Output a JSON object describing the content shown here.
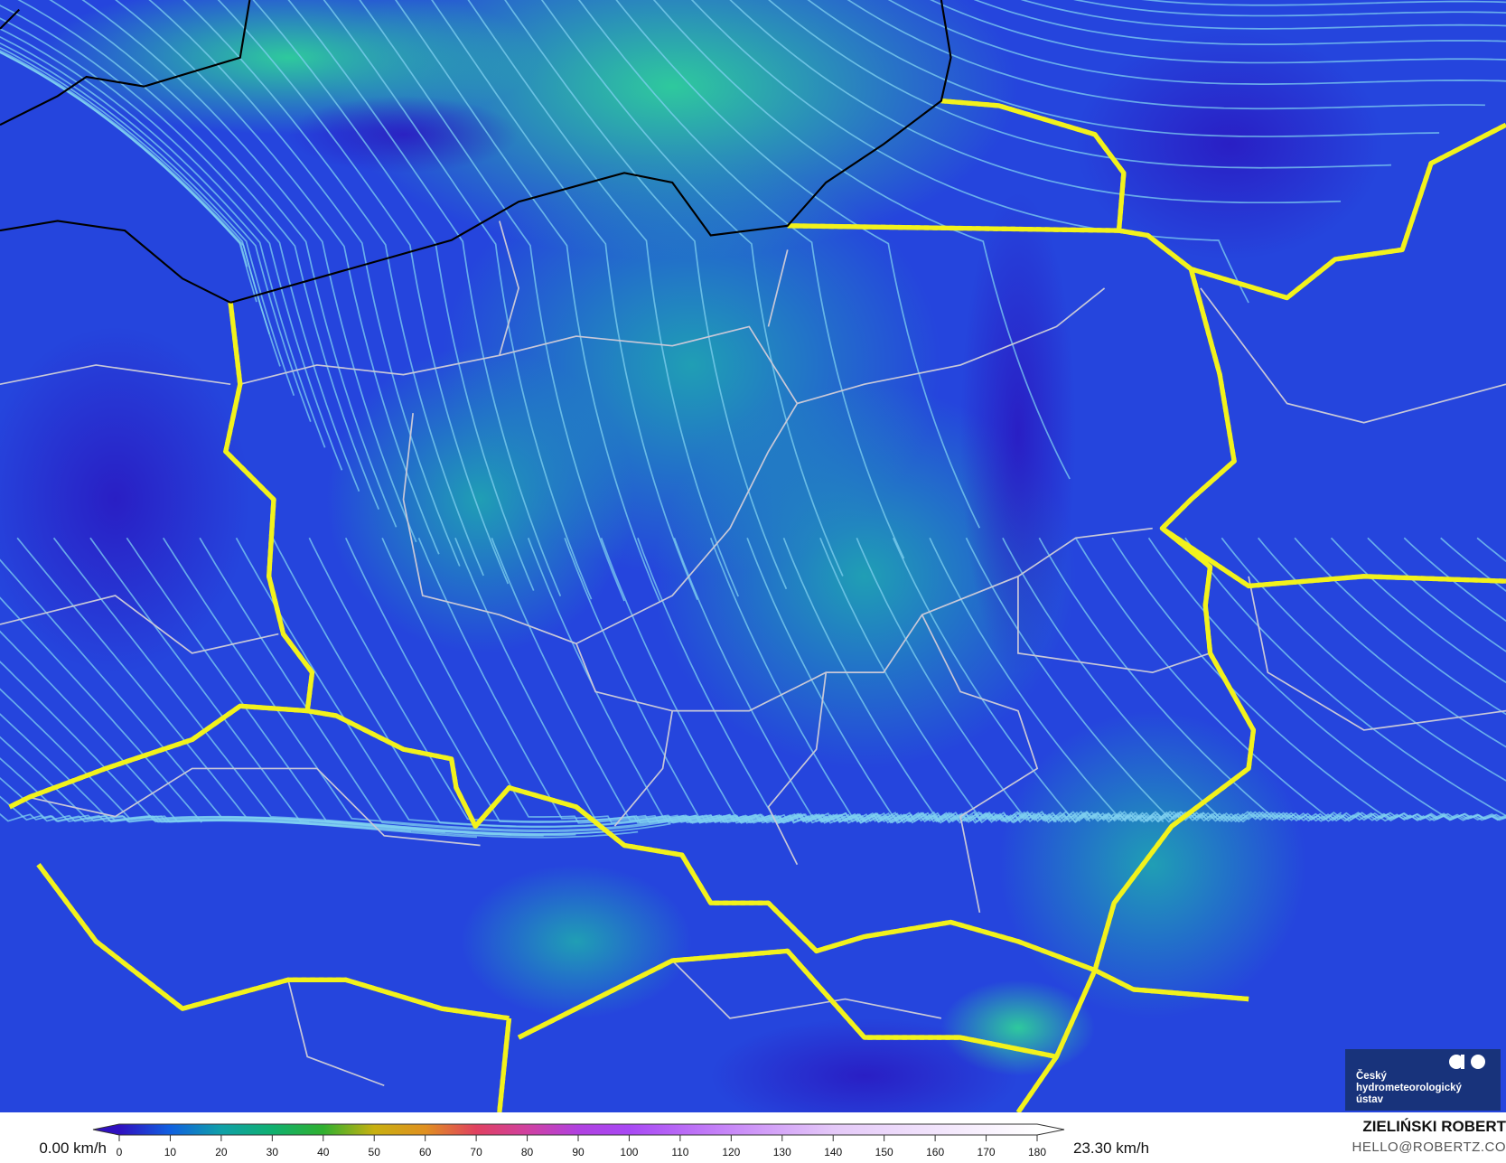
{
  "map": {
    "variable": "wind speed",
    "colors": {
      "background": "#2545dd",
      "low": "#2a1fc8",
      "mid": "#1fa8a8",
      "high": "#2bc490",
      "streamline": "#7fd0f0",
      "national_border": "#f2f21c",
      "admin_border": "#c8c8d8",
      "coastline": "#000000"
    }
  },
  "logo": {
    "line1": "Český",
    "line2": "hydrometeorologický",
    "line3": "ústav",
    "icon": "chmi-logo-icon"
  },
  "legend": {
    "min_label": "0.00 km/h",
    "max_label": "23.30 km/h",
    "ticks": [
      "0",
      "10",
      "20",
      "30",
      "40",
      "50",
      "60",
      "70",
      "80",
      "90",
      "100",
      "110",
      "120",
      "130",
      "140",
      "150",
      "160",
      "170",
      "180"
    ],
    "range": [
      0,
      180
    ],
    "stops": [
      {
        "v": 0,
        "c": "#3010c0"
      },
      {
        "v": 10,
        "c": "#1060e0"
      },
      {
        "v": 20,
        "c": "#10a0a8"
      },
      {
        "v": 30,
        "c": "#10b070"
      },
      {
        "v": 40,
        "c": "#30b030"
      },
      {
        "v": 50,
        "c": "#c8b010"
      },
      {
        "v": 60,
        "c": "#e09020"
      },
      {
        "v": 70,
        "c": "#e04060"
      },
      {
        "v": 80,
        "c": "#d040a0"
      },
      {
        "v": 90,
        "c": "#b040e0"
      },
      {
        "v": 100,
        "c": "#a848f4"
      },
      {
        "v": 120,
        "c": "#c888f8"
      },
      {
        "v": 140,
        "c": "#e4c8f8"
      },
      {
        "v": 180,
        "c": "#ffffff"
      }
    ]
  },
  "credit": {
    "author": "ZIELIŃSKI ROBERT",
    "email": "HELLO@ROBERTZ.CO"
  }
}
